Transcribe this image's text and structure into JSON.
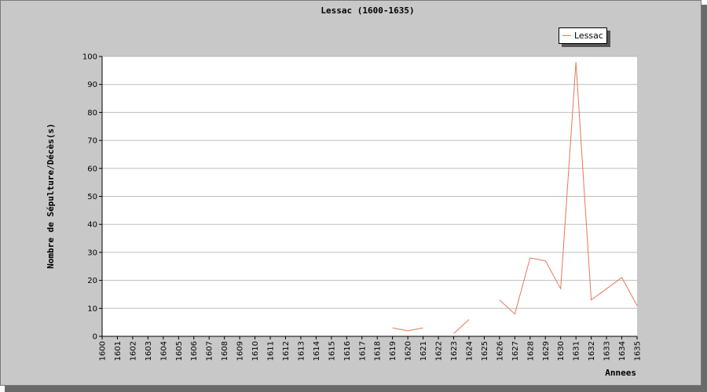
{
  "chart_data": {
    "type": "line",
    "title": "Lessac (1600-1635)",
    "xlabel": "Annees",
    "ylabel": "Nombre de Sépulture/Décès(s)",
    "ylim": [
      0,
      100
    ],
    "yticks": [
      0,
      10,
      20,
      30,
      40,
      50,
      60,
      70,
      80,
      90,
      100
    ],
    "categories": [
      "1600",
      "1601",
      "1602",
      "1603",
      "1604",
      "1605",
      "1606",
      "1607",
      "1608",
      "1609",
      "1610",
      "1611",
      "1612",
      "1613",
      "1614",
      "1615",
      "1616",
      "1617",
      "1618",
      "1619",
      "1620",
      "1621",
      "1622",
      "1623",
      "1624",
      "1625",
      "1626",
      "1627",
      "1628",
      "1629",
      "1630",
      "1631",
      "1632",
      "1633",
      "1634",
      "1635"
    ],
    "grid": true,
    "legend": "top-right",
    "series": [
      {
        "name": "Lessac",
        "color": "#e8765a",
        "values": [
          null,
          null,
          null,
          null,
          null,
          null,
          null,
          null,
          null,
          null,
          null,
          null,
          null,
          null,
          null,
          null,
          null,
          null,
          null,
          3,
          2,
          3,
          null,
          1,
          6,
          null,
          13,
          8,
          28,
          27,
          17,
          98,
          13,
          17,
          21,
          11
        ]
      }
    ]
  }
}
